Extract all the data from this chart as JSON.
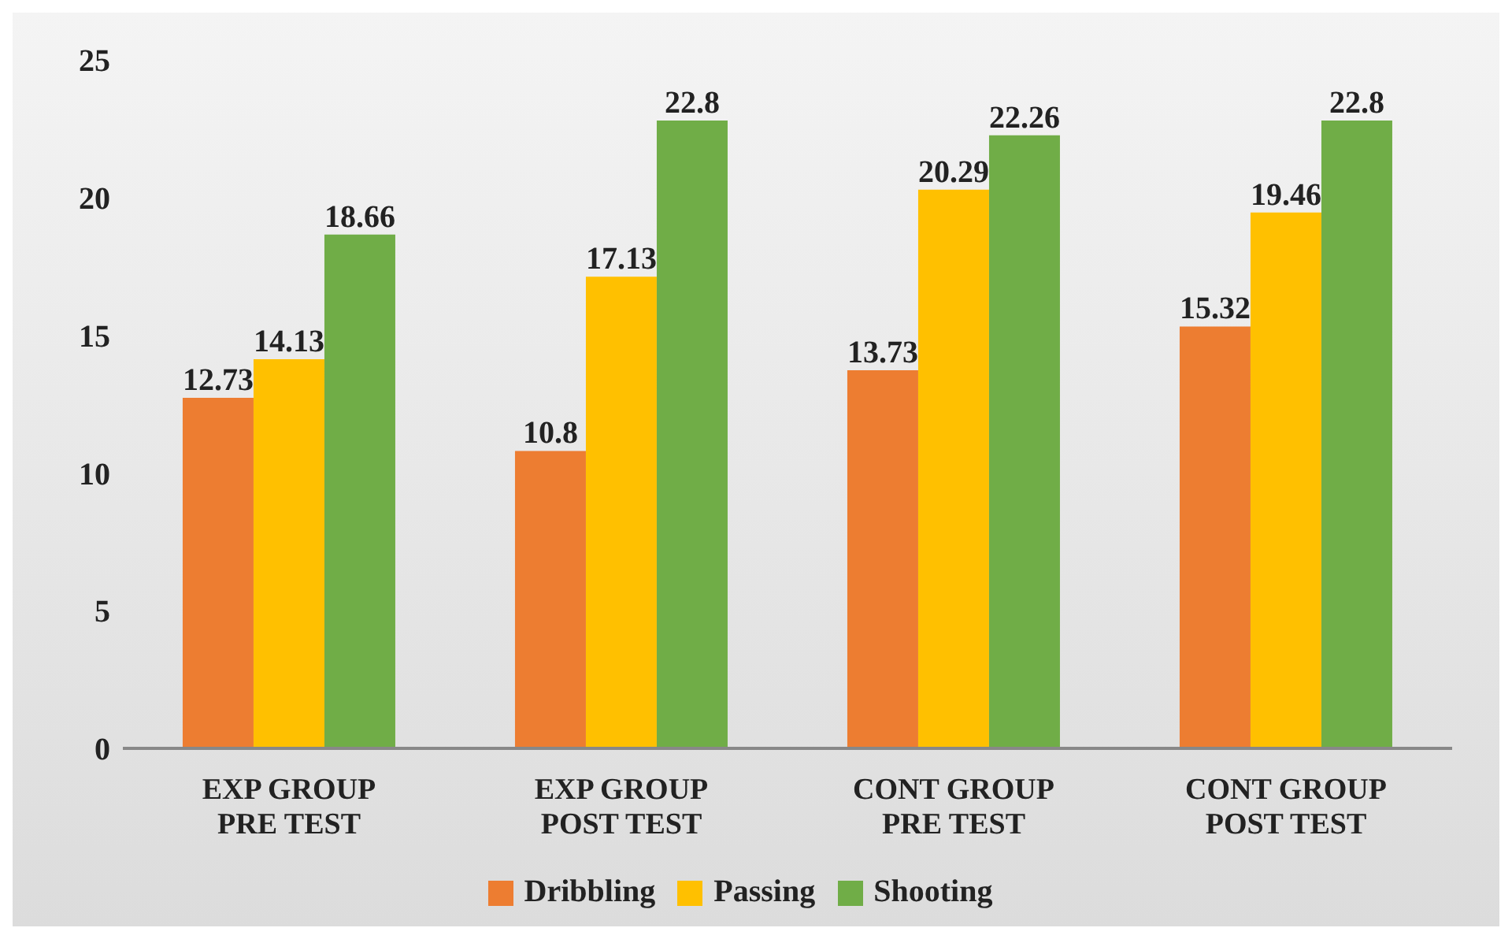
{
  "chart_data": {
    "type": "bar",
    "categories": [
      "EXP GROUP PRE TEST",
      "EXP GROUP POST TEST",
      "CONT GROUP PRE TEST",
      "CONT GROUP POST TEST"
    ],
    "series": [
      {
        "name": "Dribbling",
        "color": "#ed7d31",
        "values": [
          12.73,
          10.8,
          13.73,
          15.32
        ]
      },
      {
        "name": "Passing",
        "color": "#ffc000",
        "values": [
          14.13,
          17.13,
          20.29,
          19.46
        ]
      },
      {
        "name": "Shooting",
        "color": "#70ad47",
        "values": [
          18.66,
          22.8,
          22.26,
          22.8
        ]
      }
    ],
    "ylim": [
      0,
      25
    ],
    "yticks": [
      0,
      5,
      10,
      15,
      20,
      25
    ],
    "grid": false,
    "legend": "bottom",
    "data_labels": true
  }
}
